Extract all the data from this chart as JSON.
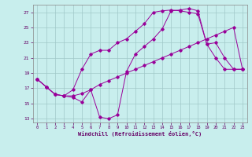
{
  "xlabel": "Windchill (Refroidissement éolien,°C)",
  "bg_color": "#c8eeed",
  "line_color": "#990099",
  "grid_color": "#a0c8c8",
  "xlim": [
    -0.5,
    23.5
  ],
  "ylim": [
    12.5,
    28.0
  ],
  "xticks": [
    0,
    1,
    2,
    3,
    4,
    5,
    6,
    7,
    8,
    9,
    10,
    11,
    12,
    13,
    14,
    15,
    16,
    17,
    18,
    19,
    20,
    21,
    22,
    23
  ],
  "yticks": [
    13,
    15,
    17,
    19,
    21,
    23,
    25,
    27
  ],
  "series1": [
    [
      0,
      18.2
    ],
    [
      1,
      17.2
    ],
    [
      2,
      16.2
    ],
    [
      3,
      16.0
    ],
    [
      4,
      16.0
    ],
    [
      5,
      16.3
    ],
    [
      6,
      16.8
    ],
    [
      7,
      17.5
    ],
    [
      8,
      18.0
    ],
    [
      9,
      18.5
    ],
    [
      10,
      19.0
    ],
    [
      11,
      19.5
    ],
    [
      12,
      20.0
    ],
    [
      13,
      20.5
    ],
    [
      14,
      21.0
    ],
    [
      15,
      21.5
    ],
    [
      16,
      22.0
    ],
    [
      17,
      22.5
    ],
    [
      18,
      23.0
    ],
    [
      19,
      23.5
    ],
    [
      20,
      24.0
    ],
    [
      21,
      24.5
    ],
    [
      22,
      25.0
    ],
    [
      23,
      19.5
    ]
  ],
  "series2": [
    [
      0,
      18.2
    ],
    [
      1,
      17.2
    ],
    [
      2,
      16.2
    ],
    [
      3,
      16.0
    ],
    [
      4,
      16.8
    ],
    [
      5,
      19.5
    ],
    [
      6,
      21.5
    ],
    [
      7,
      22.0
    ],
    [
      8,
      22.0
    ],
    [
      9,
      23.0
    ],
    [
      10,
      23.5
    ],
    [
      11,
      24.5
    ],
    [
      12,
      25.5
    ],
    [
      13,
      27.0
    ],
    [
      14,
      27.2
    ],
    [
      15,
      27.3
    ],
    [
      16,
      27.2
    ],
    [
      17,
      27.0
    ],
    [
      18,
      26.8
    ],
    [
      19,
      22.8
    ],
    [
      20,
      21.0
    ],
    [
      21,
      19.5
    ],
    [
      22,
      19.5
    ],
    [
      23,
      19.5
    ]
  ],
  "series3": [
    [
      0,
      18.2
    ],
    [
      1,
      17.2
    ],
    [
      2,
      16.2
    ],
    [
      3,
      16.0
    ],
    [
      4,
      15.8
    ],
    [
      5,
      15.2
    ],
    [
      6,
      16.8
    ],
    [
      7,
      13.2
    ],
    [
      8,
      13.0
    ],
    [
      9,
      13.5
    ],
    [
      10,
      19.2
    ],
    [
      11,
      21.5
    ],
    [
      12,
      22.5
    ],
    [
      13,
      23.5
    ],
    [
      14,
      24.8
    ],
    [
      15,
      27.2
    ],
    [
      16,
      27.3
    ],
    [
      17,
      27.5
    ],
    [
      18,
      27.2
    ],
    [
      19,
      22.8
    ],
    [
      20,
      23.0
    ],
    [
      21,
      21.0
    ],
    [
      22,
      19.5
    ],
    [
      23,
      19.5
    ]
  ]
}
